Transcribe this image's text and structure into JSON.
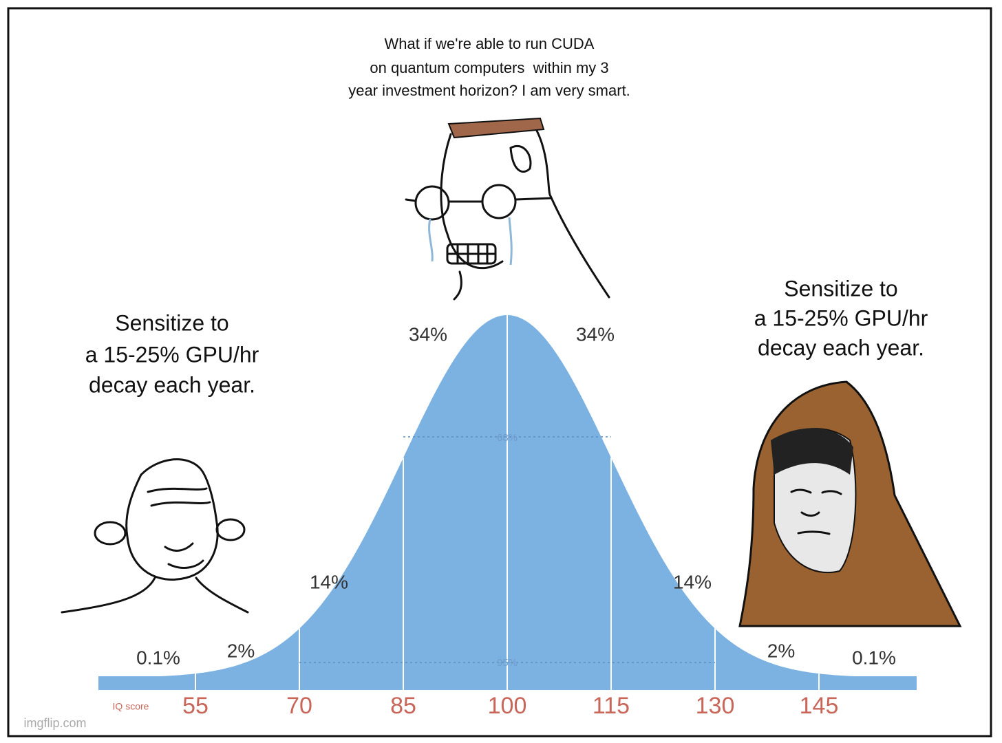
{
  "top_caption": [
    "What if we're able to run CUDA",
    "on quantum computers  within my 3",
    "year investment horizon? I am very smart."
  ],
  "left_caption": [
    "Sensitize to",
    "a 15-25% GPU/hr",
    "decay each year."
  ],
  "right_caption": [
    "Sensitize to",
    "a 15-25% GPU/hr",
    "decay each year."
  ],
  "region_labels": [
    "0.1%",
    "2%",
    "14%",
    "34%",
    "34%",
    "14%",
    "2%",
    "0.1%"
  ],
  "band_labels": [
    "68%",
    "95%"
  ],
  "axis_label": "IQ score",
  "axis_ticks": [
    "55",
    "70",
    "85",
    "100",
    "115",
    "130",
    "145"
  ],
  "watermark": "imgflip.com"
}
